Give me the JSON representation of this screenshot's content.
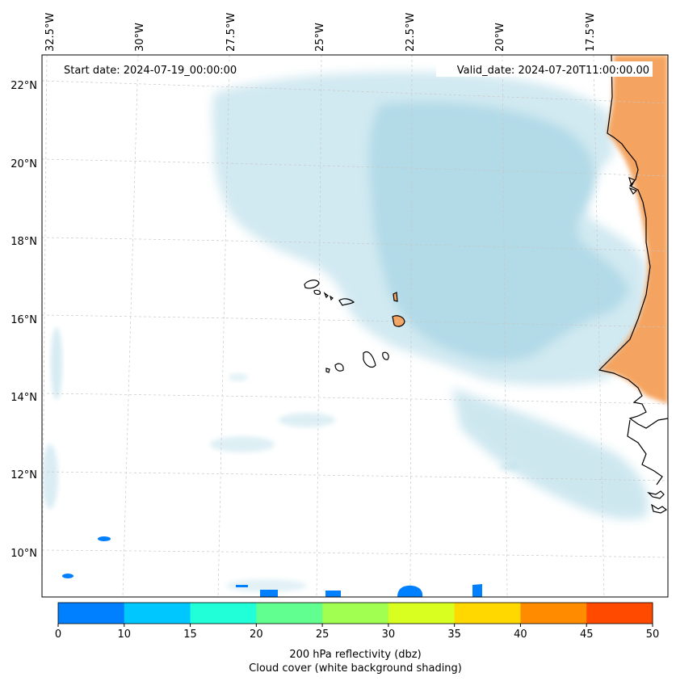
{
  "map": {
    "start_date": "Start date: 2024-07-19_00:00:00",
    "valid_date": "Valid_date: 2024-07-20T11:00:00.00",
    "lon_labels": [
      "32.5°W",
      "30°W",
      "27.5°W",
      "25°W",
      "22.5°W",
      "20°W",
      "17.5°W"
    ],
    "lat_labels": [
      "22°N",
      "20°N",
      "18°N",
      "16°N",
      "14°N",
      "12°N",
      "10°N"
    ],
    "colors": {
      "cloud": "#add8e6",
      "land": "#f4a460",
      "reflectivity_low": "#0080ff",
      "coast": "#000000",
      "grid": "#c8c8c8"
    }
  },
  "colorbar": {
    "ticks": [
      "0",
      "10",
      "15",
      "20",
      "25",
      "30",
      "35",
      "40",
      "45",
      "50"
    ],
    "bins": [
      {
        "from": 0,
        "to": 10,
        "color": "#0080ff"
      },
      {
        "from": 10,
        "to": 15,
        "color": "#00c8ff"
      },
      {
        "from": 15,
        "to": 20,
        "color": "#20ffd8"
      },
      {
        "from": 20,
        "to": 25,
        "color": "#60ff90"
      },
      {
        "from": 25,
        "to": 30,
        "color": "#a0ff50"
      },
      {
        "from": 30,
        "to": 35,
        "color": "#d8ff20"
      },
      {
        "from": 35,
        "to": 40,
        "color": "#ffd800"
      },
      {
        "from": 40,
        "to": 45,
        "color": "#ff8c00"
      },
      {
        "from": 45,
        "to": 50,
        "color": "#ff4a00"
      }
    ],
    "label_line1": "200 hPa reflectivity (dbz)",
    "label_line2": "Cloud cover (white background shading)"
  }
}
